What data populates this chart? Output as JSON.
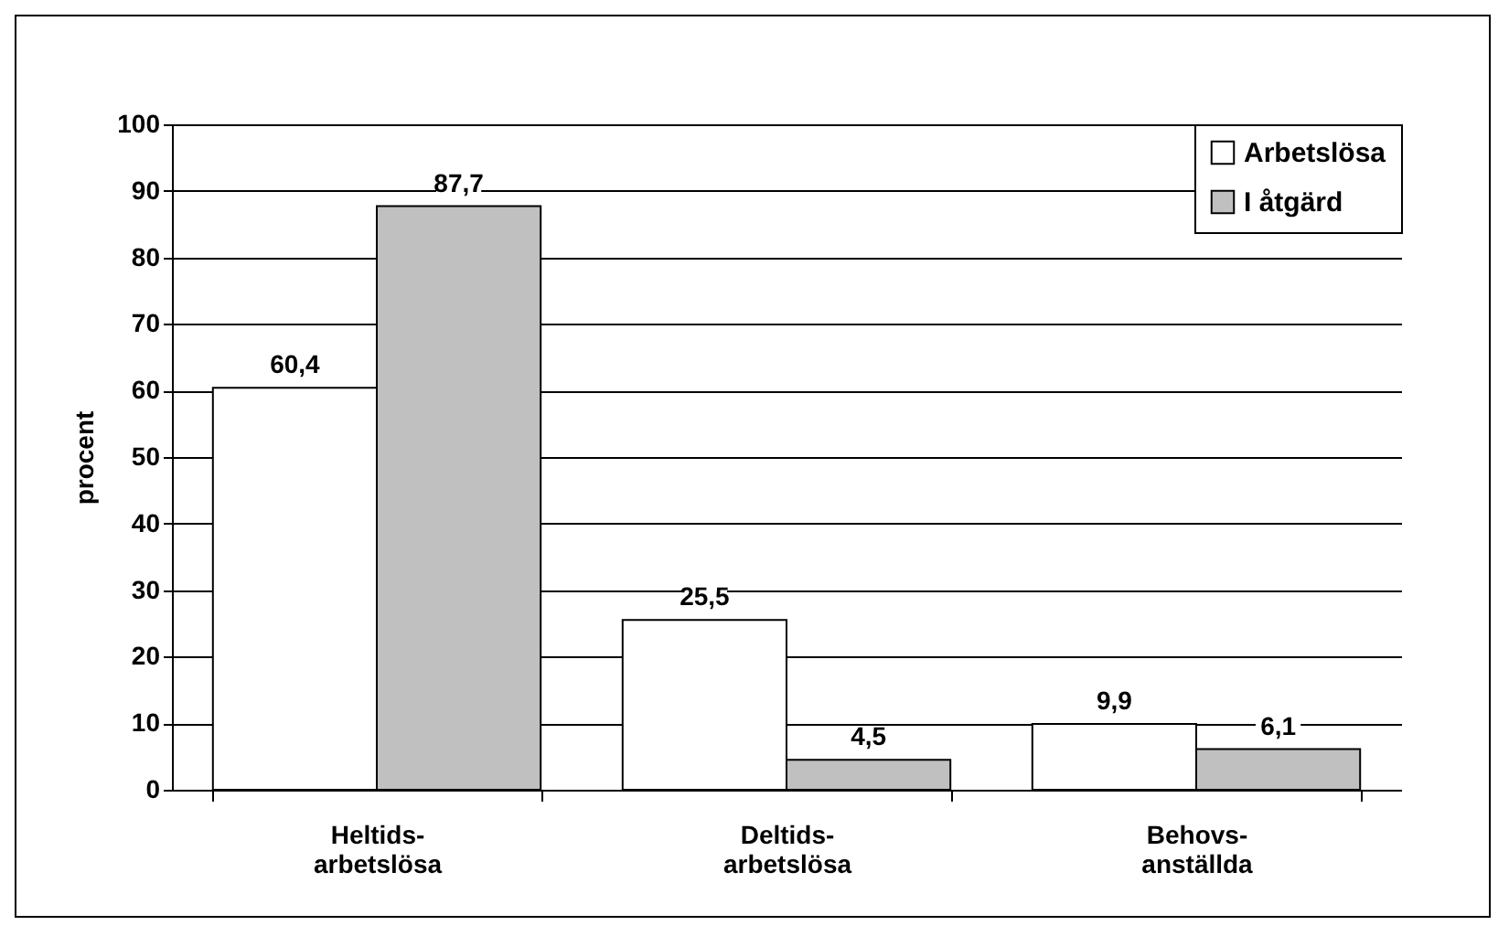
{
  "chart_data": {
    "type": "bar",
    "ylabel": "procent",
    "categories": [
      "Heltids-arbetslösa",
      "Deltids-arbetslösa",
      "Behovs-anställda"
    ],
    "series": [
      {
        "name": "Arbetslösa",
        "color": "#ffffff",
        "values": [
          60.4,
          25.5,
          9.9
        ],
        "value_labels": [
          "60,4",
          "25,5",
          "9,9"
        ]
      },
      {
        "name": "I åtgärd",
        "color": "#c0c0c0",
        "values": [
          87.7,
          4.5,
          6.1
        ],
        "value_labels": [
          "87,7",
          "4,5",
          "6,1"
        ]
      }
    ],
    "ylim": [
      0,
      100
    ],
    "yticks": [
      0,
      10,
      20,
      30,
      40,
      50,
      60,
      70,
      80,
      90,
      100
    ],
    "grid": "y",
    "legend": "top right"
  }
}
